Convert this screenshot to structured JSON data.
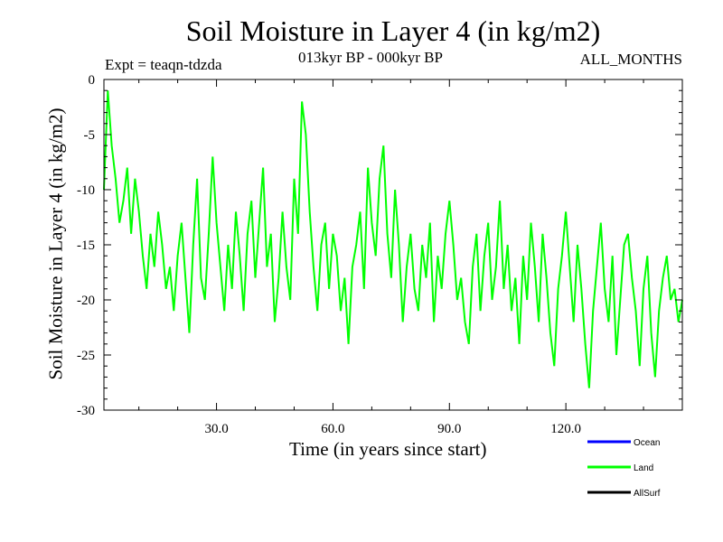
{
  "chart_data": {
    "type": "line",
    "title": "Soil Moisture in Layer 4 (in kg/m2)",
    "subtitle": "013kyr BP - 000kyr BP",
    "experiment": "Expt = teaqn-tdzda",
    "period": "ALL_MONTHS",
    "xlabel": "Time (in years since start)",
    "ylabel": "Soil Moisture in Layer 4 (in kg/m2)",
    "xlim": [
      1,
      150
    ],
    "ylim": [
      -30,
      0
    ],
    "xticks": [
      30,
      60,
      90,
      120
    ],
    "xtick_labels": [
      "30.0",
      "60.0",
      "90.0",
      "120.0"
    ],
    "yticks": [
      0,
      -5,
      -10,
      -15,
      -20,
      -25,
      -30
    ],
    "ytick_labels": [
      "0",
      "-5",
      "-10",
      "-15",
      "-20",
      "-25",
      "-30"
    ],
    "series": [
      {
        "name": "Land",
        "color": "#00ff00",
        "x": [
          1,
          2,
          3,
          4,
          5,
          6,
          7,
          8,
          9,
          10,
          11,
          12,
          13,
          14,
          15,
          16,
          17,
          18,
          19,
          20,
          21,
          22,
          23,
          24,
          25,
          26,
          27,
          28,
          29,
          30,
          31,
          32,
          33,
          34,
          35,
          36,
          37,
          38,
          39,
          40,
          41,
          42,
          43,
          44,
          45,
          46,
          47,
          48,
          49,
          50,
          51,
          52,
          53,
          54,
          55,
          56,
          57,
          58,
          59,
          60,
          61,
          62,
          63,
          64,
          65,
          66,
          67,
          68,
          69,
          70,
          71,
          72,
          73,
          74,
          75,
          76,
          77,
          78,
          79,
          80,
          81,
          82,
          83,
          84,
          85,
          86,
          87,
          88,
          89,
          90,
          91,
          92,
          93,
          94,
          95,
          96,
          97,
          98,
          99,
          100,
          101,
          102,
          103,
          104,
          105,
          106,
          107,
          108,
          109,
          110,
          111,
          112,
          113,
          114,
          115,
          116,
          117,
          118,
          119,
          120,
          121,
          122,
          123,
          124,
          125,
          126,
          127,
          128,
          129,
          130,
          131,
          132,
          133,
          134,
          135,
          136,
          137,
          138,
          139,
          140,
          141,
          142,
          143,
          144,
          145,
          146,
          147,
          148,
          149,
          150
        ],
        "values": [
          -10,
          -1,
          -6,
          -9,
          -13,
          -11,
          -8,
          -14,
          -9,
          -12,
          -16,
          -19,
          -14,
          -17,
          -12,
          -15,
          -19,
          -17,
          -21,
          -16,
          -13,
          -18,
          -23,
          -15,
          -9,
          -18,
          -20,
          -14,
          -7,
          -13,
          -17,
          -21,
          -15,
          -19,
          -12,
          -16,
          -21,
          -14,
          -11,
          -18,
          -13,
          -8,
          -17,
          -14,
          -22,
          -18,
          -12,
          -17,
          -20,
          -9,
          -14,
          -2,
          -5,
          -12,
          -17,
          -21,
          -15,
          -13,
          -19,
          -14,
          -16,
          -21,
          -18,
          -24,
          -17,
          -15,
          -12,
          -19,
          -8,
          -13,
          -16,
          -9,
          -6,
          -14,
          -18,
          -10,
          -15,
          -22,
          -17,
          -14,
          -19,
          -21,
          -15,
          -18,
          -13,
          -22,
          -16,
          -19,
          -14,
          -11,
          -15,
          -20,
          -18,
          -22,
          -24,
          -17,
          -14,
          -21,
          -16,
          -13,
          -20,
          -17,
          -11,
          -19,
          -15,
          -21,
          -18,
          -24,
          -16,
          -20,
          -13,
          -17,
          -22,
          -14,
          -18,
          -23,
          -26,
          -19,
          -16,
          -12,
          -17,
          -22,
          -15,
          -19,
          -24,
          -28,
          -21,
          -17,
          -13,
          -19,
          -22,
          -16,
          -25,
          -20,
          -15,
          -14,
          -18,
          -21,
          -26,
          -19,
          -16,
          -23,
          -27,
          -21,
          -18,
          -16,
          -20,
          -19,
          -22,
          -20
        ]
      }
    ],
    "legend": [
      {
        "label": "Ocean",
        "color": "#0000ff"
      },
      {
        "label": "Land",
        "color": "#00ff00"
      },
      {
        "label": "AllSurf",
        "color": "#000000"
      }
    ]
  }
}
